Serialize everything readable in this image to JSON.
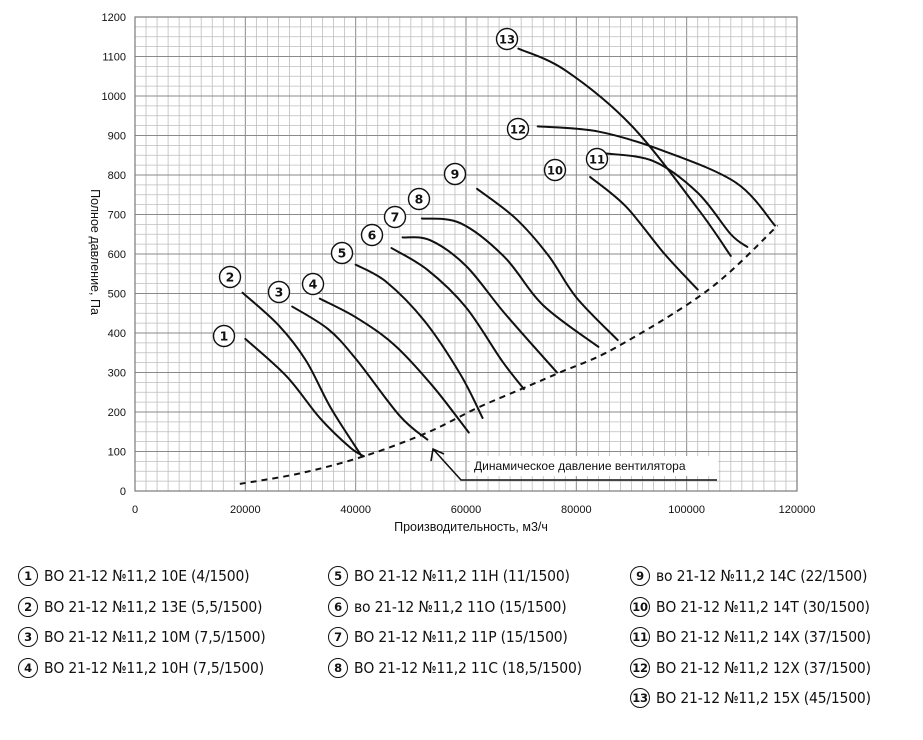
{
  "chart_data": {
    "type": "line",
    "xlabel": "Производительность, м3/ч",
    "ylabel": "Полное давление, Па",
    "xlim": [
      0,
      120000
    ],
    "ylim": [
      0,
      1200
    ],
    "xticks": [
      "0",
      "20000",
      "40000",
      "60000",
      "80000",
      "100000",
      "120000"
    ],
    "yticks": [
      "0",
      "100",
      "200",
      "300",
      "400",
      "500",
      "600",
      "700",
      "800",
      "900",
      "1000",
      "1100",
      "1200"
    ],
    "grid": true,
    "series": [
      {
        "id": "1",
        "points": [
          [
            20000,
            385
          ],
          [
            27500,
            290
          ],
          [
            33500,
            185
          ],
          [
            39000,
            110
          ],
          [
            41500,
            88
          ]
        ]
      },
      {
        "id": "2",
        "points": [
          [
            19500,
            502
          ],
          [
            26000,
            420
          ],
          [
            31000,
            330
          ],
          [
            35500,
            210
          ],
          [
            41000,
            90
          ]
        ]
      },
      {
        "id": "3",
        "points": [
          [
            28500,
            467
          ],
          [
            35000,
            410
          ],
          [
            40000,
            335
          ],
          [
            48000,
            190
          ],
          [
            53000,
            130
          ]
        ]
      },
      {
        "id": "4",
        "points": [
          [
            33500,
            487
          ],
          [
            40000,
            440
          ],
          [
            47000,
            370
          ],
          [
            54000,
            265
          ],
          [
            60500,
            148
          ]
        ]
      },
      {
        "id": "5",
        "points": [
          [
            40000,
            573
          ],
          [
            45500,
            530
          ],
          [
            52500,
            430
          ],
          [
            59000,
            295
          ],
          [
            63000,
            185
          ]
        ]
      },
      {
        "id": "6",
        "points": [
          [
            46500,
            615
          ],
          [
            53000,
            560
          ],
          [
            60000,
            465
          ],
          [
            66500,
            330
          ],
          [
            70500,
            258
          ]
        ]
      },
      {
        "id": "7",
        "points": [
          [
            48500,
            642
          ],
          [
            53500,
            635
          ],
          [
            60000,
            570
          ],
          [
            67000,
            450
          ],
          [
            76500,
            300
          ]
        ]
      },
      {
        "id": "8",
        "points": [
          [
            52000,
            690
          ],
          [
            59000,
            678
          ],
          [
            67000,
            592
          ],
          [
            74000,
            470
          ],
          [
            84000,
            365
          ]
        ]
      },
      {
        "id": "9",
        "points": [
          [
            62000,
            765
          ],
          [
            69000,
            690
          ],
          [
            75000,
            595
          ],
          [
            80000,
            490
          ],
          [
            87500,
            382
          ]
        ]
      },
      {
        "id": "10",
        "points": [
          [
            82500,
            795
          ],
          [
            89000,
            720
          ],
          [
            96000,
            600
          ],
          [
            102000,
            510
          ]
        ]
      },
      {
        "id": "11",
        "points": [
          [
            85000,
            855
          ],
          [
            94000,
            835
          ],
          [
            102000,
            755
          ],
          [
            108000,
            650
          ],
          [
            111000,
            618
          ]
        ]
      },
      {
        "id": "12",
        "points": [
          [
            73000,
            923
          ],
          [
            84000,
            910
          ],
          [
            96000,
            860
          ],
          [
            109000,
            780
          ],
          [
            116000,
            672
          ]
        ]
      },
      {
        "id": "13",
        "points": [
          [
            69500,
            1120
          ],
          [
            78000,
            1065
          ],
          [
            90000,
            925
          ],
          [
            102000,
            715
          ],
          [
            108000,
            595
          ]
        ]
      }
    ],
    "dynamic_pressure": {
      "label": "Динамическое давление вентилятора",
      "points": [
        [
          19000,
          18
        ],
        [
          30000,
          45
        ],
        [
          41500,
          88
        ],
        [
          53000,
          148
        ],
        [
          62000,
          210
        ],
        [
          70000,
          258
        ],
        [
          77000,
          300
        ],
        [
          87000,
          362
        ],
        [
          104000,
          510
        ],
        [
          116500,
          672
        ]
      ]
    },
    "legend": [
      {
        "id": "1",
        "text": "ВО 21-12 №11,2 10Е (4/1500)"
      },
      {
        "id": "2",
        "text": "ВО 21-12 №11,2 13Е (5,5/1500)"
      },
      {
        "id": "3",
        "text": "ВО 21-12 №11,2 10М (7,5/1500)"
      },
      {
        "id": "4",
        "text": "ВО 21-12 №11,2 10Н (7,5/1500)"
      },
      {
        "id": "5",
        "text": "ВО 21-12 №11,2 11Н (11/1500)"
      },
      {
        "id": "6",
        "text": "во 21-12 №11,2 11О (15/1500)"
      },
      {
        "id": "7",
        "text": "ВО 21-12 №11,2 11Р (15/1500)"
      },
      {
        "id": "8",
        "text": "ВО 21-12 №11,2 11С (18,5/1500)"
      },
      {
        "id": "9",
        "text": "во 21-12 №11,2 14С (22/1500)"
      },
      {
        "id": "10",
        "text": "ВО 21-12 №11,2 14Т (30/1500)"
      },
      {
        "id": "11",
        "text": "ВО 21-12 №11,2 14Х (37/1500)"
      },
      {
        "id": "12",
        "text": "ВО 21-12 №11,2 12Х (37/1500)"
      },
      {
        "id": "13",
        "text": "ВО 21-12 №11,2 15Х (45/1500)"
      }
    ]
  }
}
